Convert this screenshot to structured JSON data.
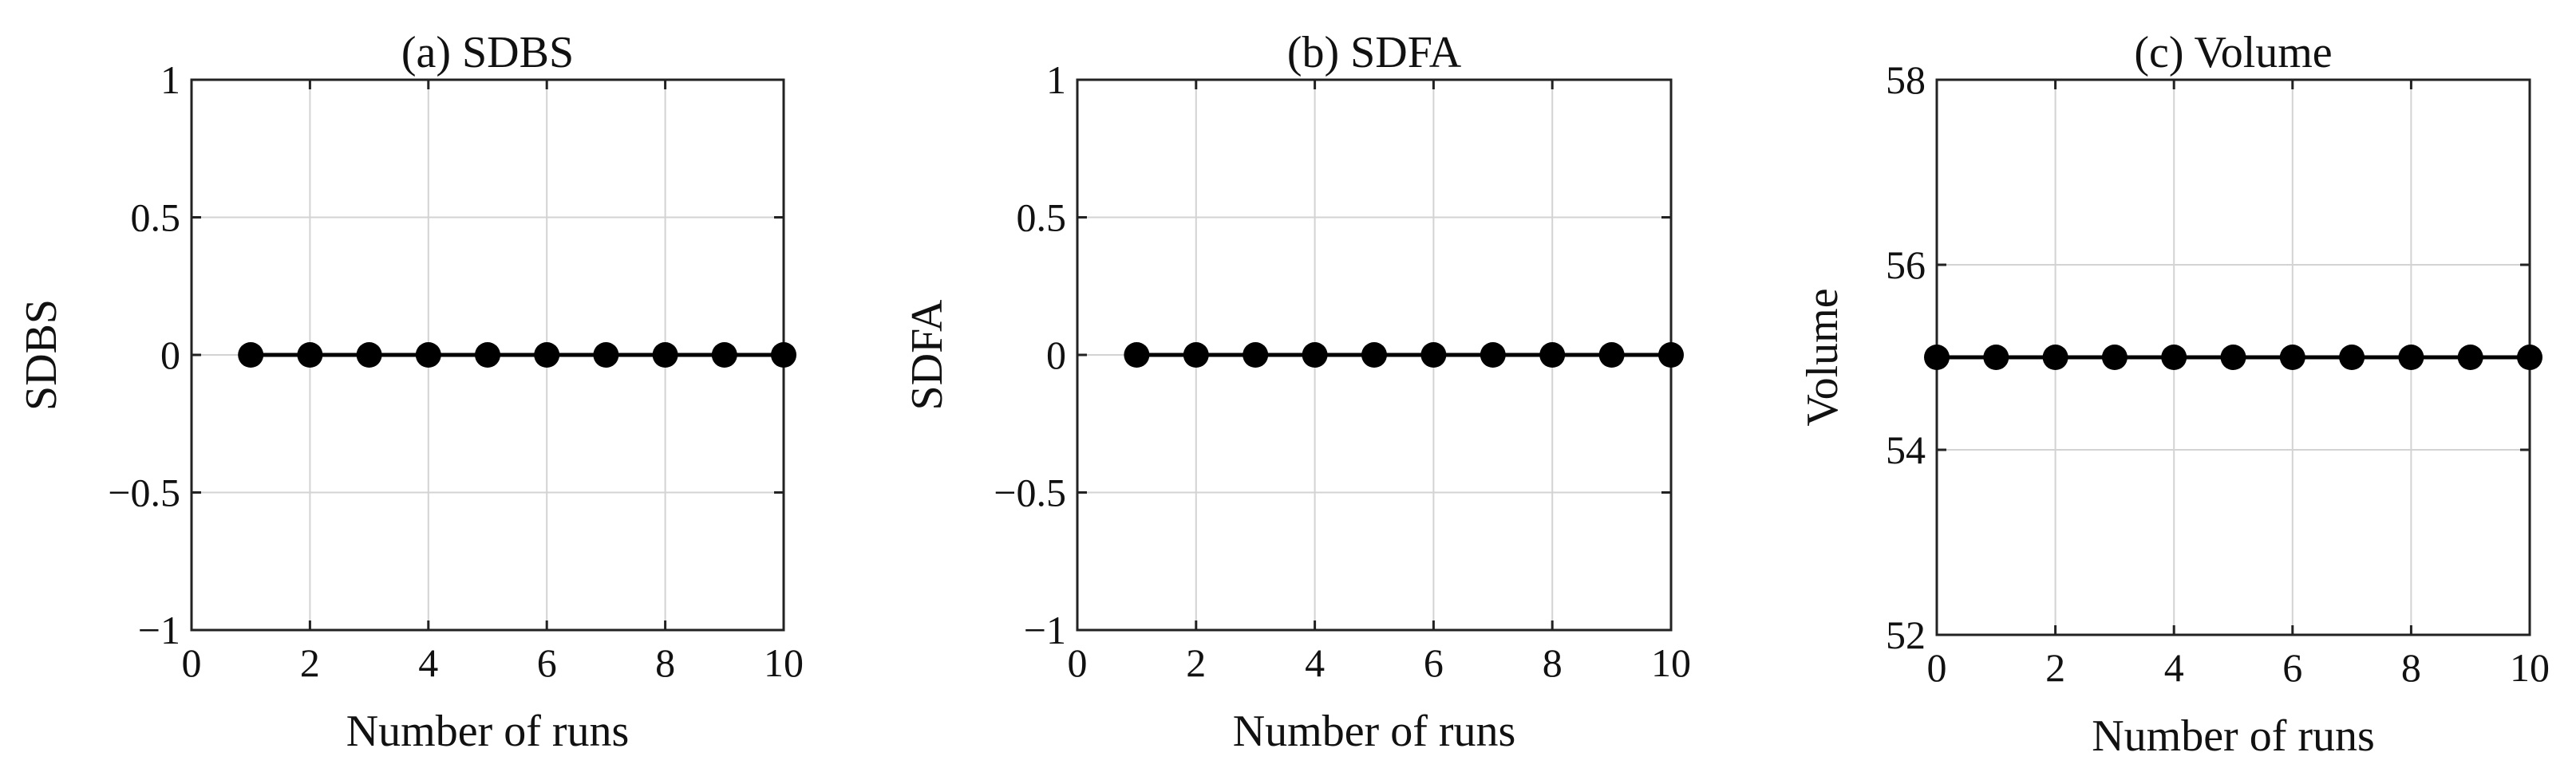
{
  "chart_data": [
    {
      "type": "line",
      "title": "(a) SDBS",
      "xlabel": "Number of runs",
      "ylabel": "SDBS",
      "xlim": [
        0,
        10
      ],
      "ylim": [
        -1,
        1
      ],
      "xticks": [
        0,
        2,
        4,
        6,
        8,
        10
      ],
      "xtick_labels": [
        "0",
        "2",
        "4",
        "6",
        "8",
        "10"
      ],
      "yticks": [
        -1,
        -0.5,
        0,
        0.5,
        1
      ],
      "ytick_labels": [
        "−1",
        "−0.5",
        "0",
        "0.5",
        "1"
      ],
      "grid": true,
      "marker": "filled-circle",
      "series": [
        {
          "x": [
            1,
            2,
            3,
            4,
            5,
            6,
            7,
            8,
            9,
            10
          ],
          "values": [
            0,
            0,
            0,
            0,
            0,
            0,
            0,
            0,
            0,
            0
          ]
        }
      ]
    },
    {
      "type": "line",
      "title": "(b) SDFA",
      "xlabel": "Number of runs",
      "ylabel": "SDFA",
      "xlim": [
        0,
        10
      ],
      "ylim": [
        -1,
        1
      ],
      "xticks": [
        0,
        2,
        4,
        6,
        8,
        10
      ],
      "xtick_labels": [
        "0",
        "2",
        "4",
        "6",
        "8",
        "10"
      ],
      "yticks": [
        -1,
        -0.5,
        0,
        0.5,
        1
      ],
      "ytick_labels": [
        "−1",
        "−0.5",
        "0",
        "0.5",
        "1"
      ],
      "grid": true,
      "marker": "filled-circle",
      "series": [
        {
          "x": [
            1,
            2,
            3,
            4,
            5,
            6,
            7,
            8,
            9,
            10
          ],
          "values": [
            0,
            0,
            0,
            0,
            0,
            0,
            0,
            0,
            0,
            0
          ]
        }
      ]
    },
    {
      "type": "line",
      "title": "(c) Volume",
      "xlabel": "Number of runs",
      "ylabel": "Volume",
      "xlim": [
        0,
        10
      ],
      "ylim": [
        52,
        58
      ],
      "xticks": [
        0,
        2,
        4,
        6,
        8,
        10
      ],
      "xtick_labels": [
        "0",
        "2",
        "4",
        "6",
        "8",
        "10"
      ],
      "yticks": [
        52,
        54,
        56,
        58
      ],
      "ytick_labels": [
        "52",
        "54",
        "56",
        "58"
      ],
      "grid": true,
      "marker": "filled-circle",
      "series": [
        {
          "x": [
            0,
            1,
            2,
            3,
            4,
            5,
            6,
            7,
            8,
            9,
            10
          ],
          "values": [
            55,
            55,
            55,
            55,
            55,
            55,
            55,
            55,
            55,
            55,
            55
          ]
        }
      ]
    }
  ]
}
